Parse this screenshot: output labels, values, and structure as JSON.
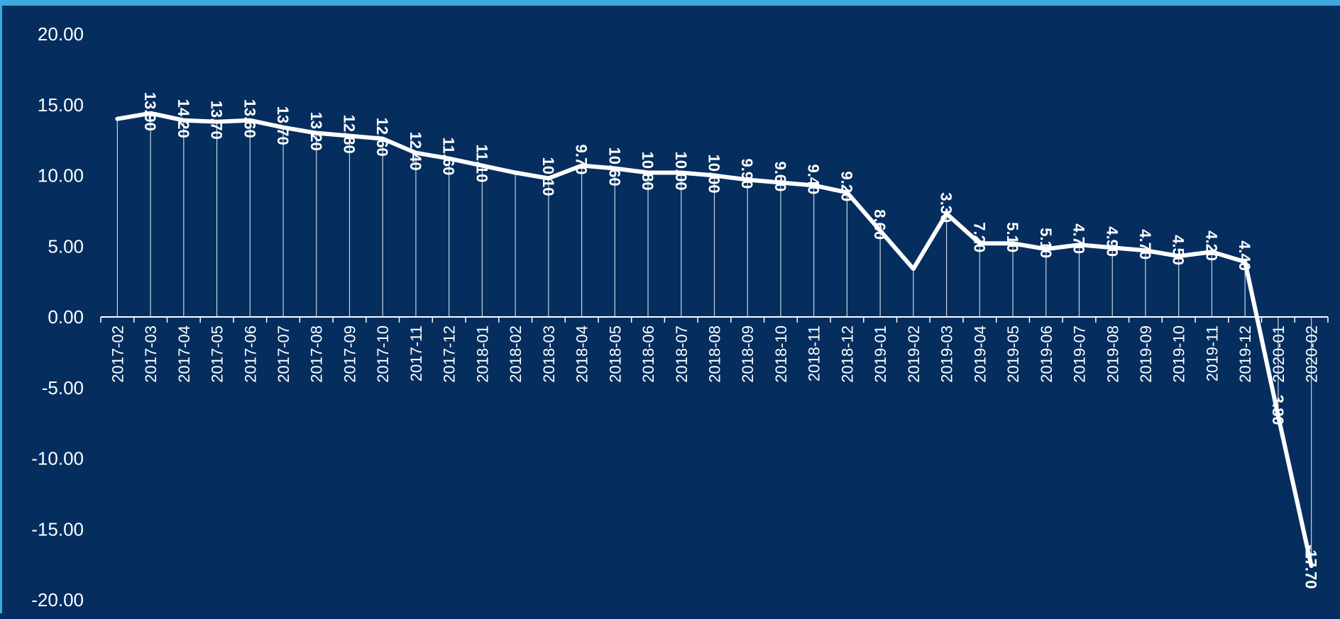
{
  "chart_data": {
    "type": "line",
    "title": "",
    "xlabel": "",
    "ylabel": "",
    "ylim": [
      -20,
      20
    ],
    "yticks": [
      "20.00",
      "15.00",
      "10.00",
      "5.00",
      "0.00",
      "-5.00",
      "-10.00",
      "-15.00",
      "-20.00"
    ],
    "categories": [
      "2017-02",
      "2017-03",
      "2017-04",
      "2017-05",
      "2017-06",
      "2017-07",
      "2017-08",
      "2017-09",
      "2017-10",
      "2017-11",
      "2017-12",
      "2018-01",
      "2018-02",
      "2018-03",
      "2018-04",
      "2018-05",
      "2018-06",
      "2018-07",
      "2018-08",
      "2018-09",
      "2018-10",
      "2018-11",
      "2018-12",
      "2019-01",
      "2019-02",
      "2019-03",
      "2019-04",
      "2019-05",
      "2019-06",
      "2019-07",
      "2019-08",
      "2019-09",
      "2019-10",
      "2019-11",
      "2019-12",
      "2020-01",
      "2020-02"
    ],
    "series": [
      {
        "values": [
          14.0,
          14.4,
          13.9,
          13.8,
          13.9,
          13.4,
          13.0,
          12.8,
          12.6,
          11.6,
          11.2,
          10.7,
          10.2,
          9.8,
          10.7,
          10.5,
          10.2,
          10.2,
          10.0,
          9.7,
          9.5,
          9.3,
          8.8,
          6.1,
          3.4,
          7.3,
          5.2,
          5.2,
          4.8,
          5.1,
          4.9,
          4.7,
          4.3,
          4.6,
          3.9,
          -7.0,
          -17.6
        ],
        "labels": [
          "",
          "13.90",
          "14.20",
          "13.70",
          "13.60",
          "13.70",
          "13.20",
          "12.80",
          "12.60",
          "12.40",
          "11.60",
          "11.10",
          "",
          "10.10",
          "9.70",
          "10.60",
          "10.80",
          "10.00",
          "10.00",
          "9.90",
          "9.60",
          "9.40",
          "9.20",
          "8.60",
          "",
          "3.30",
          "7.20",
          "5.10",
          "5.10",
          "4.70",
          "4.90",
          "4.70",
          "4.50",
          "4.20",
          "4.40",
          "3.80",
          "-17.70"
        ]
      }
    ],
    "colors": {
      "background": "#052e5f",
      "frame": "#3fa9dd",
      "line": "#ffffff",
      "droplines": "#c9d3e2"
    }
  }
}
